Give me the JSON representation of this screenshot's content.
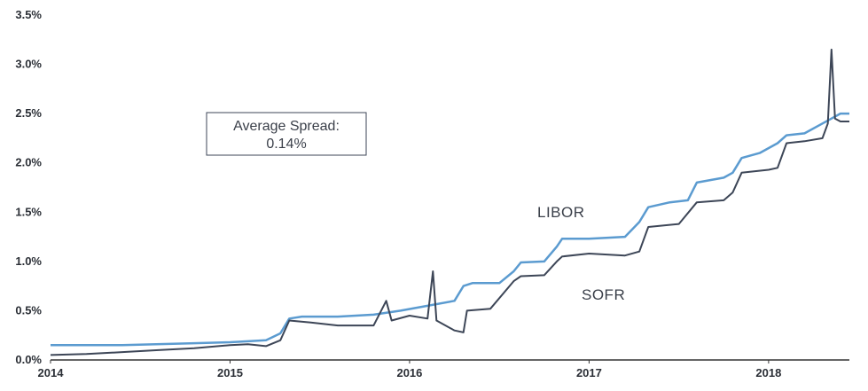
{
  "chart_data": {
    "type": "line",
    "title": "",
    "xlabel": "",
    "ylabel": "",
    "xlim": [
      2014.0,
      2018.45
    ],
    "ylim": [
      0,
      3.5
    ],
    "grid": false,
    "x_ticks": [
      "2014",
      "2015",
      "2016",
      "2017",
      "2018"
    ],
    "y_ticks": [
      "0.0%",
      "0.5%",
      "1.0%",
      "1.5%",
      "2.0%",
      "2.5%",
      "3.0%",
      "3.5%"
    ],
    "annotation": {
      "line1": "Average Spread:",
      "line2": "0.14%"
    },
    "series_colors": {
      "LIBOR": "#5b9bd0",
      "SOFR": "#3d4657"
    },
    "series": [
      {
        "name": "LIBOR",
        "x": [
          2014.0,
          2014.4,
          2014.8,
          2015.0,
          2015.2,
          2015.28,
          2015.33,
          2015.4,
          2015.6,
          2015.8,
          2015.95,
          2016.1,
          2016.25,
          2016.3,
          2016.35,
          2016.5,
          2016.58,
          2016.62,
          2016.75,
          2016.82,
          2016.85,
          2017.0,
          2017.2,
          2017.28,
          2017.33,
          2017.45,
          2017.55,
          2017.6,
          2017.75,
          2017.8,
          2017.85,
          2017.95,
          2018.05,
          2018.1,
          2018.2,
          2018.3,
          2018.35,
          2018.4,
          2018.45
        ],
        "values": [
          0.15,
          0.15,
          0.17,
          0.18,
          0.2,
          0.27,
          0.42,
          0.44,
          0.44,
          0.46,
          0.5,
          0.55,
          0.6,
          0.75,
          0.78,
          0.78,
          0.9,
          0.99,
          1.0,
          1.15,
          1.23,
          1.23,
          1.25,
          1.4,
          1.55,
          1.6,
          1.62,
          1.8,
          1.85,
          1.9,
          2.05,
          2.1,
          2.2,
          2.28,
          2.3,
          2.4,
          2.45,
          2.5,
          2.5
        ]
      },
      {
        "name": "SOFR",
        "x": [
          2014.0,
          2014.2,
          2014.4,
          2014.6,
          2014.8,
          2015.0,
          2015.1,
          2015.2,
          2015.28,
          2015.33,
          2015.45,
          2015.6,
          2015.8,
          2015.87,
          2015.9,
          2016.0,
          2016.1,
          2016.13,
          2016.15,
          2016.25,
          2016.3,
          2016.32,
          2016.45,
          2016.58,
          2016.62,
          2016.75,
          2016.82,
          2016.85,
          2017.0,
          2017.2,
          2017.28,
          2017.33,
          2017.5,
          2017.6,
          2017.75,
          2017.8,
          2017.85,
          2018.0,
          2018.05,
          2018.1,
          2018.2,
          2018.3,
          2018.33,
          2018.35,
          2018.37,
          2018.4,
          2018.45
        ],
        "values": [
          0.05,
          0.06,
          0.08,
          0.1,
          0.12,
          0.15,
          0.16,
          0.14,
          0.2,
          0.4,
          0.38,
          0.35,
          0.35,
          0.6,
          0.4,
          0.45,
          0.42,
          0.9,
          0.4,
          0.3,
          0.28,
          0.5,
          0.52,
          0.8,
          0.85,
          0.86,
          1.0,
          1.05,
          1.08,
          1.06,
          1.1,
          1.35,
          1.38,
          1.6,
          1.62,
          1.7,
          1.9,
          1.93,
          1.95,
          2.2,
          2.22,
          2.25,
          2.4,
          3.15,
          2.45,
          2.42,
          2.42
        ]
      }
    ]
  }
}
